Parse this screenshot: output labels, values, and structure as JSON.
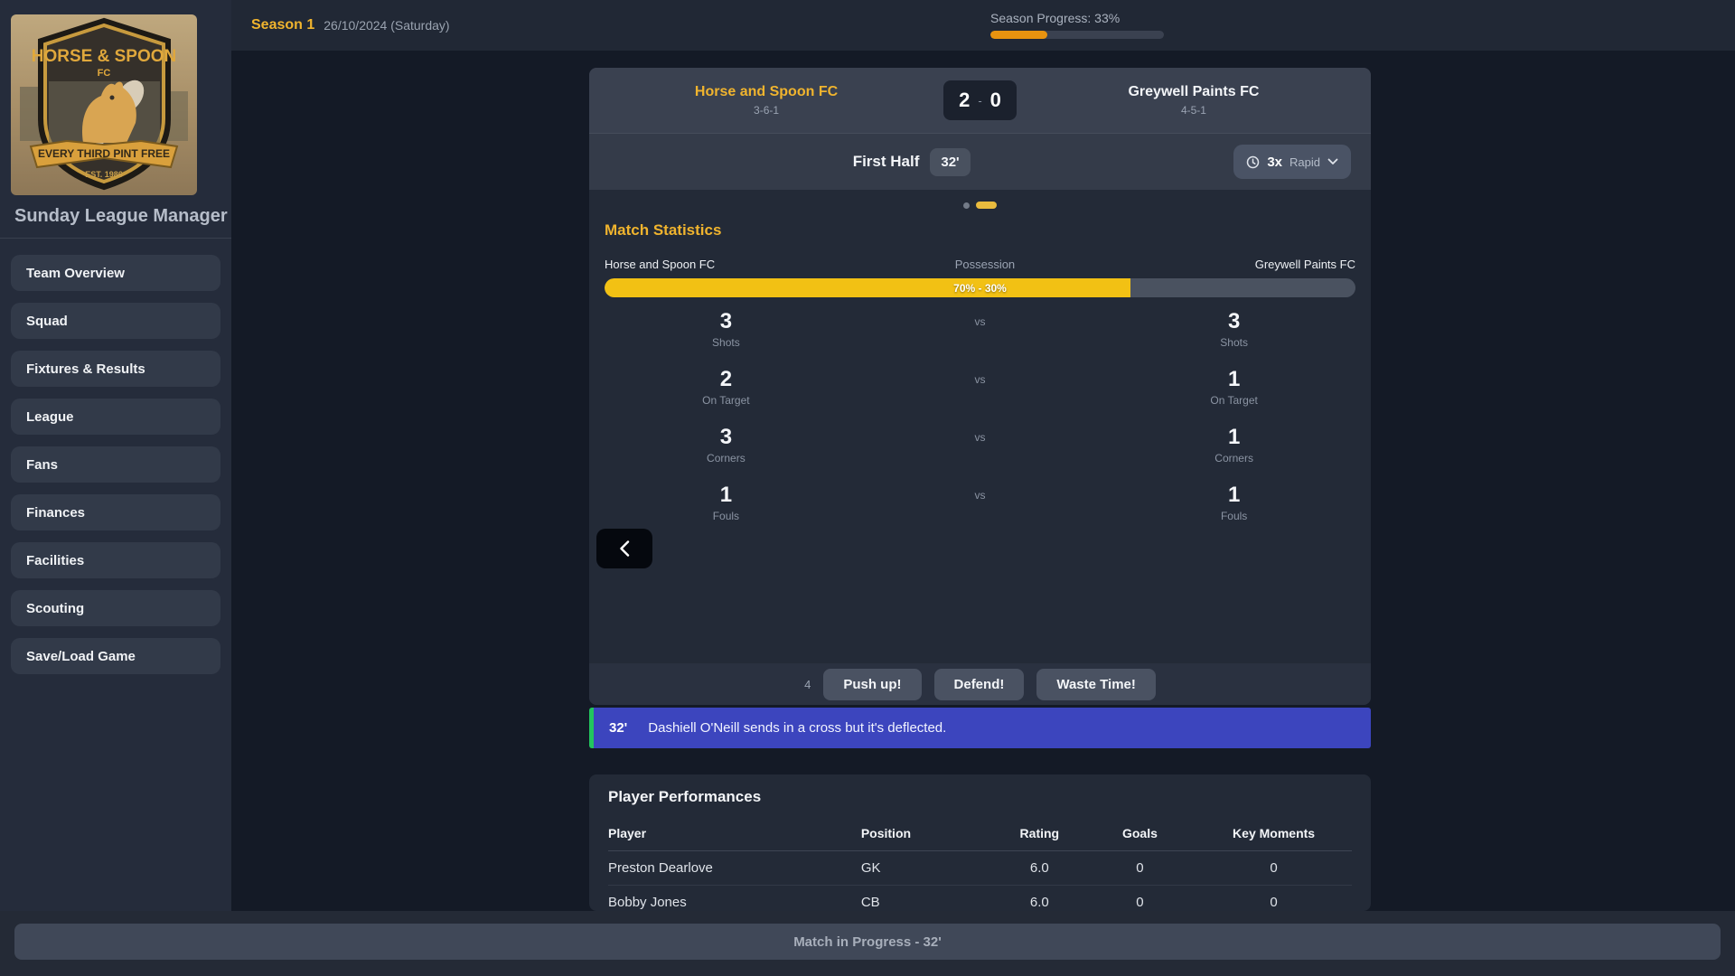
{
  "app": {
    "title": "Sunday League Manager"
  },
  "logo": {
    "club": "HORSE & SPOON",
    "fc": "FC",
    "motto": "EVERY THIRD PINT FREE",
    "est": "EST. 1986"
  },
  "topbar": {
    "season": "Season 1",
    "date": "26/10/2024 (Saturday)",
    "progress_label": "Season Progress: 33%",
    "progress_pct": 33
  },
  "sidebar": {
    "items": [
      {
        "label": "Team Overview"
      },
      {
        "label": "Squad"
      },
      {
        "label": "Fixtures & Results"
      },
      {
        "label": "League"
      },
      {
        "label": "Fans"
      },
      {
        "label": "Finances"
      },
      {
        "label": "Facilities"
      },
      {
        "label": "Scouting"
      },
      {
        "label": "Save/Load Game"
      }
    ]
  },
  "match": {
    "home": {
      "name": "Horse and Spoon FC",
      "formation": "3-6-1",
      "score": "2"
    },
    "away": {
      "name": "Greywell Paints FC",
      "formation": "4-5-1",
      "score": "0"
    },
    "score_sep": "-",
    "period": "First Half",
    "clock": "32'",
    "speed": {
      "multiplier": "3x",
      "label": "Rapid"
    },
    "stats_title": "Match Statistics",
    "possession": {
      "home_label": "Horse and Spoon FC",
      "center_label": "Possession",
      "away_label": "Greywell Paints FC",
      "home_pct": 70,
      "away_pct": 30,
      "bar_text": "70% - 30%"
    },
    "stats": [
      {
        "label": "Shots",
        "home": "3",
        "vs": "vs",
        "away": "3"
      },
      {
        "label": "On Target",
        "home": "2",
        "vs": "vs",
        "away": "1"
      },
      {
        "label": "Corners",
        "home": "3",
        "vs": "vs",
        "away": "1"
      },
      {
        "label": "Fouls",
        "home": "1",
        "vs": "vs",
        "away": "1"
      }
    ],
    "pending_count": "4",
    "actions": [
      {
        "label": "Push up!"
      },
      {
        "label": "Defend!"
      },
      {
        "label": "Waste Time!"
      }
    ],
    "event": {
      "minute": "32'",
      "text": "Dashiell O'Neill sends in a cross but it's deflected."
    }
  },
  "performances": {
    "title": "Player Performances",
    "columns": [
      "Player",
      "Position",
      "Rating",
      "Goals",
      "Key Moments"
    ],
    "rows": [
      {
        "player": "Preston Dearlove",
        "position": "GK",
        "rating": "6.0",
        "goals": "0",
        "key_moments": "0"
      },
      {
        "player": "Bobby Jones",
        "position": "CB",
        "rating": "6.0",
        "goals": "0",
        "key_moments": "0"
      }
    ]
  },
  "statusbar": {
    "text": "Match in Progress - 32'"
  },
  "colors": {
    "accent_yellow": "#f0b42e",
    "possession_yellow": "#f2c114",
    "progress_orange": "#e8930f",
    "event_blue": "#3c45be",
    "event_green": "#22c55e"
  }
}
